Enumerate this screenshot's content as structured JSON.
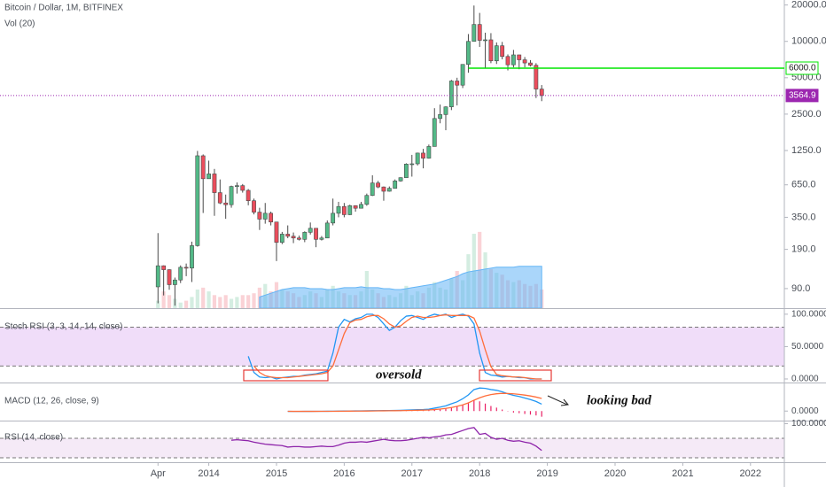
{
  "chart_data": [
    {
      "type": "candlestick",
      "title": "Bitcoin / Dollar, 1M, BITFINEX",
      "volume_label": "Vol (20)",
      "x": [
        "2013-04",
        "2013-05",
        "2013-06",
        "2013-07",
        "2013-08",
        "2013-09",
        "2013-10",
        "2013-11",
        "2013-12",
        "2014-01",
        "2014-02",
        "2014-03",
        "2014-04",
        "2014-05",
        "2014-06",
        "2014-07",
        "2014-08",
        "2014-09",
        "2014-10",
        "2014-11",
        "2014-12",
        "2015-01",
        "2015-02",
        "2015-03",
        "2015-04",
        "2015-05",
        "2015-06",
        "2015-07",
        "2015-08",
        "2015-09",
        "2015-10",
        "2015-11",
        "2015-12",
        "2016-01",
        "2016-02",
        "2016-03",
        "2016-04",
        "2016-05",
        "2016-06",
        "2016-07",
        "2016-08",
        "2016-09",
        "2016-10",
        "2016-11",
        "2016-12",
        "2017-01",
        "2017-02",
        "2017-03",
        "2017-04",
        "2017-05",
        "2017-06",
        "2017-07",
        "2017-08",
        "2017-09",
        "2017-10",
        "2017-11",
        "2017-12",
        "2018-01",
        "2018-02",
        "2018-03",
        "2018-04",
        "2018-05",
        "2018-06",
        "2018-07",
        "2018-08",
        "2018-09",
        "2018-10",
        "2018-11",
        "2018-12"
      ],
      "open": [
        93,
        139,
        129,
        97,
        106,
        135,
        133,
        204,
        1130,
        730,
        800,
        560,
        460,
        445,
        630,
        640,
        585,
        480,
        386,
        338,
        378,
        320,
        217,
        254,
        244,
        236,
        230,
        263,
        284,
        230,
        236,
        314,
        378,
        430,
        368,
        437,
        416,
        448,
        531,
        673,
        624,
        575,
        608,
        700,
        745,
        965,
        970,
        1190,
        1080,
        1350,
        2300,
        2480,
        2870,
        4700,
        4340,
        6450,
        10000,
        13800,
        10200,
        10300,
        6900,
        9200,
        7500,
        6400,
        7730,
        7040,
        6630,
        6340,
        4030
      ],
      "high": [
        259,
        140,
        130,
        111,
        140,
        145,
        220,
        1240,
        1160,
        1030,
        880,
        720,
        540,
        640,
        680,
        660,
        600,
        500,
        420,
        460,
        390,
        320,
        265,
        300,
        262,
        247,
        268,
        317,
        285,
        245,
        330,
        500,
        470,
        460,
        445,
        440,
        470,
        550,
        780,
        700,
        630,
        630,
        720,
        750,
        980,
        1150,
        1200,
        1290,
        1400,
        2800,
        3000,
        2900,
        4800,
        5000,
        6470,
        11500,
        19800,
        17200,
        11800,
        11700,
        9800,
        9900,
        7800,
        8500,
        7750,
        7420,
        7000,
        6600,
        4350
      ],
      "low": [
        68,
        79,
        88,
        65,
        100,
        114,
        102,
        200,
        380,
        730,
        360,
        450,
        340,
        420,
        550,
        560,
        440,
        370,
        275,
        310,
        300,
        152,
        210,
        235,
        214,
        225,
        218,
        252,
        198,
        225,
        236,
        300,
        350,
        350,
        365,
        390,
        414,
        436,
        525,
        610,
        480,
        570,
        605,
        690,
        745,
        760,
        940,
        890,
        1070,
        1350,
        2100,
        1840,
        2700,
        2950,
        4110,
        5500,
        10000,
        9000,
        6000,
        6600,
        6500,
        7100,
        5750,
        6100,
        5880,
        6100,
        6200,
        3400,
        3200
      ],
      "close": [
        139,
        129,
        97,
        106,
        135,
        133,
        204,
        1130,
        730,
        800,
        560,
        460,
        445,
        630,
        640,
        585,
        480,
        386,
        338,
        378,
        320,
        217,
        254,
        244,
        236,
        230,
        263,
        284,
        230,
        236,
        314,
        378,
        430,
        368,
        437,
        416,
        448,
        531,
        673,
        624,
        575,
        608,
        700,
        745,
        965,
        970,
        1190,
        1080,
        1350,
        2300,
        2480,
        2870,
        4700,
        4340,
        6450,
        10000,
        13800,
        10200,
        10300,
        6900,
        9200,
        7500,
        6400,
        7730,
        7040,
        6630,
        6340,
        4030,
        3565
      ],
      "up_color": "#53b987",
      "down_color": "#eb4d5c",
      "volume": [
        8,
        18,
        14,
        10,
        6,
        8,
        12,
        20,
        22,
        18,
        14,
        12,
        14,
        10,
        12,
        14,
        14,
        16,
        22,
        26,
        18,
        28,
        20,
        18,
        16,
        12,
        14,
        18,
        16,
        12,
        20,
        24,
        18,
        16,
        14,
        14,
        18,
        40,
        20,
        16,
        12,
        14,
        12,
        16,
        24,
        14,
        18,
        16,
        22,
        28,
        22,
        20,
        32,
        40,
        30,
        58,
        80,
        82,
        60,
        42,
        38,
        36,
        30,
        28,
        30,
        26,
        24,
        26,
        20
      ],
      "volume_ma": [
        null,
        null,
        null,
        null,
        null,
        null,
        null,
        null,
        null,
        null,
        null,
        null,
        null,
        null,
        null,
        null,
        null,
        null,
        12,
        14,
        16,
        18,
        20,
        21,
        22,
        22,
        22,
        21,
        21,
        21,
        20,
        20,
        21,
        22,
        22,
        22,
        23,
        22,
        22,
        22,
        21,
        21,
        20,
        20,
        21,
        22,
        23,
        24,
        25,
        26,
        28,
        30,
        32,
        34,
        37,
        39,
        40,
        41,
        42,
        43,
        44,
        44,
        44,
        44,
        45,
        45,
        45,
        45,
        45
      ],
      "volume_ma_color": "#64b5f6",
      "volume_ylim": [
        0,
        100
      ],
      "ylim": [
        62,
        22000
      ],
      "log_scale": true,
      "yticks": [
        {
          "value": 20000,
          "label": "20000.0"
        },
        {
          "value": 10000,
          "label": "10000.0"
        },
        {
          "value": 5000,
          "label": "5000.0"
        },
        {
          "value": 2500,
          "label": "2500.0"
        },
        {
          "value": 1250,
          "label": "1250.0"
        },
        {
          "value": 650,
          "label": "650.0"
        },
        {
          "value": 350,
          "label": "350.0"
        },
        {
          "value": 190,
          "label": "190.0"
        },
        {
          "value": 90,
          "label": "90.0"
        }
      ],
      "xlim": [
        "2010-12",
        "2022-07"
      ],
      "xticks": [
        {
          "value": "2013-04",
          "label": "Apr"
        },
        {
          "value": "2014-01",
          "label": "2014"
        },
        {
          "value": "2015-01",
          "label": "2015"
        },
        {
          "value": "2016-01",
          "label": "2016"
        },
        {
          "value": "2017-01",
          "label": "2017"
        },
        {
          "value": "2018-01",
          "label": "2018"
        },
        {
          "value": "2019-01",
          "label": "2019"
        },
        {
          "value": "2020-01",
          "label": "2020"
        },
        {
          "value": "2021-01",
          "label": "2021"
        },
        {
          "value": "2022-01",
          "label": "2022"
        }
      ],
      "levels": [
        {
          "value": 6000,
          "label": "6000.0",
          "color": "#00e600",
          "from": "2017-11",
          "style": "solid"
        },
        {
          "value": 3564.9,
          "label": "3564.9",
          "color": "#9c27b0",
          "style": "dotted"
        }
      ]
    },
    {
      "type": "line",
      "title": "Stoch RSI (3, 3, 14, 14, close)",
      "annotation": "oversold",
      "ylim": [
        -5.5,
        108
      ],
      "yticks": [
        {
          "value": 100,
          "label": "100.0000"
        },
        {
          "value": 50,
          "label": "50.0000"
        },
        {
          "value": 0,
          "label": "0.0000"
        }
      ],
      "bands": [
        20,
        80
      ],
      "band_color": "#ecd5f7",
      "series": [
        {
          "color": "#2196f3",
          "values": [
            null,
            null,
            null,
            null,
            null,
            null,
            null,
            null,
            null,
            null,
            null,
            null,
            null,
            null,
            null,
            null,
            35,
            10,
            3,
            2,
            3,
            0,
            2,
            3,
            4,
            4,
            6,
            7,
            8,
            10,
            12,
            40,
            80,
            92,
            88,
            93,
            95,
            100,
            100,
            95,
            85,
            75,
            80,
            90,
            97,
            98,
            95,
            92,
            97,
            100,
            98,
            100,
            95,
            98,
            100,
            97,
            85,
            40,
            10,
            6,
            5,
            3,
            4,
            3,
            2,
            2,
            0,
            0,
            0
          ]
        },
        {
          "color": "#ff6d3a",
          "values": [
            null,
            null,
            null,
            null,
            null,
            null,
            null,
            null,
            null,
            null,
            null,
            null,
            null,
            null,
            null,
            null,
            null,
            20,
            10,
            5,
            3,
            2,
            2,
            2,
            3,
            4,
            5,
            6,
            7,
            8,
            10,
            20,
            45,
            70,
            87,
            91,
            92,
            96,
            98,
            98,
            93,
            85,
            80,
            82,
            89,
            95,
            97,
            95,
            95,
            96,
            98,
            99,
            98,
            98,
            98,
            98,
            94,
            74,
            45,
            19,
            7,
            5,
            4,
            3,
            3,
            2,
            1,
            0,
            0
          ]
        }
      ]
    },
    {
      "type": "macd",
      "title": "MACD (12, 26, close, 9)",
      "annotation": "looking bad",
      "ylim": [
        -1240,
        3600
      ],
      "yticks": [
        {
          "value": 0,
          "label": "0.0000"
        }
      ],
      "series": [
        {
          "color": "#2196f3",
          "values": [
            null,
            null,
            null,
            null,
            null,
            null,
            null,
            null,
            null,
            null,
            null,
            null,
            null,
            null,
            null,
            null,
            null,
            null,
            null,
            null,
            null,
            null,
            null,
            -40,
            -45,
            -45,
            -40,
            -35,
            -30,
            -28,
            -25,
            -15,
            -5,
            10,
            15,
            20,
            25,
            35,
            50,
            60,
            65,
            70,
            80,
            95,
            120,
            150,
            180,
            200,
            240,
            380,
            520,
            680,
            950,
            1200,
            1600,
            2100,
            2800,
            3000,
            2950,
            2800,
            2700,
            2500,
            2250,
            2050,
            1900,
            1700,
            1500,
            1250,
            900
          ]
        },
        {
          "color": "#ff6d3a",
          "values": [
            null,
            null,
            null,
            null,
            null,
            null,
            null,
            null,
            null,
            null,
            null,
            null,
            null,
            null,
            null,
            null,
            null,
            null,
            null,
            null,
            null,
            null,
            null,
            -30,
            -35,
            -38,
            -39,
            -38,
            -36,
            -34,
            -32,
            -28,
            -23,
            -16,
            -10,
            -4,
            2,
            8,
            16,
            25,
            33,
            40,
            48,
            58,
            70,
            86,
            105,
            124,
            147,
            194,
            259,
            343,
            465,
            612,
            810,
            1068,
            1414,
            1731,
            1975,
            2140,
            2252,
            2302,
            2292,
            2244,
            2175,
            2080,
            1964,
            1821,
            1637
          ]
        }
      ],
      "histogram": {
        "color": "#e91e63",
        "values": [
          null,
          null,
          null,
          null,
          null,
          null,
          null,
          null,
          null,
          null,
          null,
          null,
          null,
          null,
          null,
          null,
          null,
          null,
          null,
          null,
          null,
          null,
          null,
          -10,
          -10,
          -7,
          -1,
          3,
          6,
          6,
          7,
          13,
          18,
          26,
          25,
          24,
          23,
          27,
          34,
          35,
          32,
          30,
          32,
          37,
          50,
          64,
          75,
          76,
          93,
          186,
          261,
          337,
          485,
          588,
          790,
          1032,
          1386,
          1269,
          975,
          660,
          448,
          198,
          -42,
          -194,
          -275,
          -380,
          -464,
          -571,
          -737
        ]
      }
    },
    {
      "type": "line",
      "title": "RSI (14, close)",
      "ylim": [
        21,
        104.5
      ],
      "yticks": [
        {
          "value": 100,
          "label": "100.0000"
        }
      ],
      "bands": [
        30,
        70
      ],
      "band_color": "#f3e5f5",
      "series": [
        {
          "color": "#8e24aa",
          "values": [
            null,
            null,
            null,
            null,
            null,
            null,
            null,
            null,
            null,
            null,
            null,
            null,
            null,
            66,
            67,
            66,
            65,
            62,
            60,
            58,
            57,
            56,
            55,
            52,
            53,
            53,
            52,
            52,
            53,
            54,
            53,
            53,
            56,
            60,
            62,
            62,
            63,
            62,
            64,
            66,
            68,
            66,
            65,
            65,
            66,
            68,
            70,
            72,
            71,
            73,
            74,
            77,
            78,
            82,
            86,
            90,
            92,
            78,
            80,
            72,
            68,
            70,
            66,
            64,
            65,
            62,
            60,
            54,
            45
          ]
        }
      ]
    }
  ]
}
